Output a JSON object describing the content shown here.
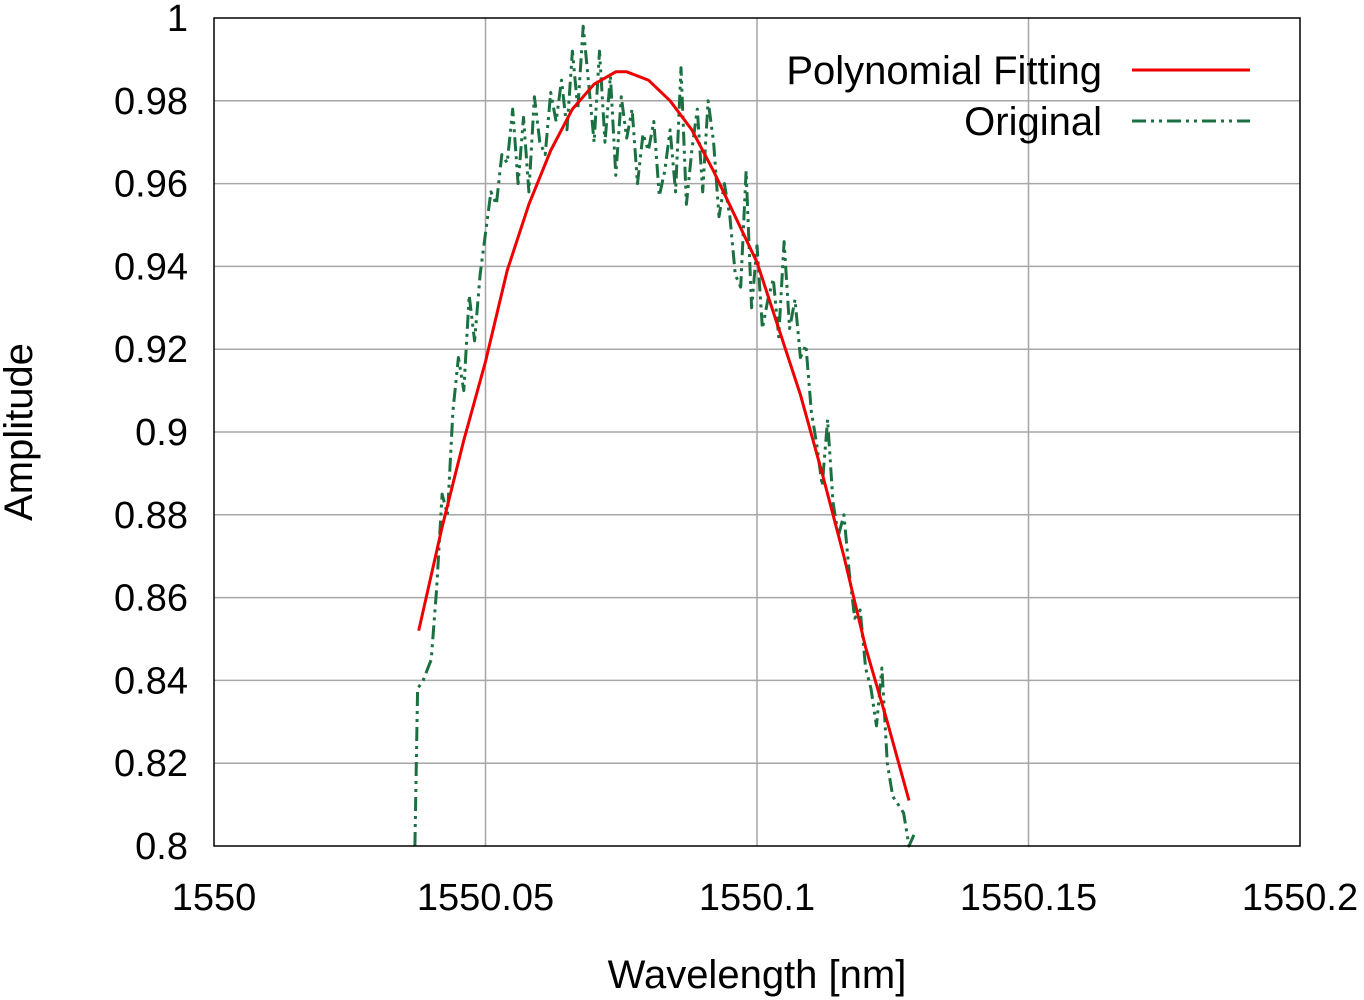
{
  "chart_data": {
    "type": "line",
    "title": "",
    "xlabel": "Wavelength [nm]",
    "ylabel": "Amplitude",
    "xlim": [
      1550,
      1550.2
    ],
    "ylim": [
      0.8,
      1.0
    ],
    "x_ticks": [
      1550,
      1550.05,
      1550.1,
      1550.15,
      1550.2
    ],
    "x_tick_labels": [
      "1550",
      "1550.05",
      "1550.1",
      "1550.15",
      "1550.2"
    ],
    "y_ticks": [
      0.8,
      0.82,
      0.84,
      0.86,
      0.88,
      0.9,
      0.92,
      0.94,
      0.96,
      0.98,
      1.0
    ],
    "y_tick_labels": [
      "0.8",
      "0.82",
      "0.84",
      "0.86",
      "0.88",
      "0.9",
      "0.92",
      "0.94",
      "0.96",
      "0.98",
      "1"
    ],
    "grid": true,
    "legend_position": "top-right",
    "series": [
      {
        "name": "Polynomial Fitting",
        "color": "#ee0000",
        "style": "solid",
        "x": [
          1550.0377,
          1550.042,
          1550.046,
          1550.05,
          1550.054,
          1550.058,
          1550.062,
          1550.066,
          1550.07,
          1550.074,
          1550.076,
          1550.08,
          1550.084,
          1550.088,
          1550.092,
          1550.096,
          1550.1,
          1550.104,
          1550.108,
          1550.112,
          1550.116,
          1550.12,
          1550.124,
          1550.128
        ],
        "y": [
          0.852,
          0.877,
          0.898,
          0.917,
          0.939,
          0.955,
          0.968,
          0.978,
          0.984,
          0.987,
          0.987,
          0.985,
          0.98,
          0.973,
          0.963,
          0.952,
          0.941,
          0.925,
          0.909,
          0.89,
          0.87,
          0.848,
          0.83,
          0.811
        ]
      },
      {
        "name": "Original",
        "color": "#1a7040",
        "style": "dash-dot-dot",
        "x": [
          1550.037,
          1550.0375,
          1550.0385,
          1550.04,
          1550.041,
          1550.042,
          1550.043,
          1550.044,
          1550.045,
          1550.046,
          1550.047,
          1550.048,
          1550.049,
          1550.05,
          1550.051,
          1550.052,
          1550.053,
          1550.054,
          1550.055,
          1550.056,
          1550.057,
          1550.058,
          1550.059,
          1550.06,
          1550.061,
          1550.062,
          1550.063,
          1550.064,
          1550.065,
          1550.066,
          1550.067,
          1550.068,
          1550.069,
          1550.07,
          1550.071,
          1550.072,
          1550.073,
          1550.074,
          1550.075,
          1550.076,
          1550.077,
          1550.078,
          1550.079,
          1550.08,
          1550.081,
          1550.082,
          1550.083,
          1550.084,
          1550.085,
          1550.086,
          1550.087,
          1550.088,
          1550.089,
          1550.09,
          1550.091,
          1550.092,
          1550.093,
          1550.094,
          1550.095,
          1550.096,
          1550.097,
          1550.098,
          1550.099,
          1550.1,
          1550.101,
          1550.102,
          1550.103,
          1550.104,
          1550.105,
          1550.106,
          1550.107,
          1550.108,
          1550.109,
          1550.11,
          1550.111,
          1550.112,
          1550.113,
          1550.114,
          1550.115,
          1550.116,
          1550.117,
          1550.118,
          1550.119,
          1550.12,
          1550.121,
          1550.122,
          1550.123,
          1550.124,
          1550.125,
          1550.126,
          1550.127,
          1550.128,
          1550.129
        ],
        "y": [
          0.8,
          0.838,
          0.84,
          0.845,
          0.862,
          0.885,
          0.88,
          0.905,
          0.918,
          0.91,
          0.933,
          0.922,
          0.938,
          0.948,
          0.958,
          0.955,
          0.967,
          0.965,
          0.978,
          0.96,
          0.976,
          0.958,
          0.981,
          0.97,
          0.967,
          0.982,
          0.975,
          0.985,
          0.973,
          0.992,
          0.978,
          0.998,
          0.984,
          0.97,
          0.992,
          0.97,
          0.986,
          0.962,
          0.981,
          0.971,
          0.978,
          0.96,
          0.972,
          0.968,
          0.975,
          0.957,
          0.963,
          0.973,
          0.958,
          0.988,
          0.955,
          0.968,
          0.978,
          0.958,
          0.98,
          0.97,
          0.952,
          0.96,
          0.952,
          0.938,
          0.935,
          0.963,
          0.93,
          0.945,
          0.925,
          0.932,
          0.937,
          0.923,
          0.946,
          0.925,
          0.932,
          0.918,
          0.921,
          0.905,
          0.897,
          0.887,
          0.903,
          0.883,
          0.875,
          0.88,
          0.866,
          0.855,
          0.857,
          0.843,
          0.838,
          0.829,
          0.843,
          0.82,
          0.812,
          0.81,
          0.808,
          0.8,
          0.803
        ]
      }
    ]
  }
}
